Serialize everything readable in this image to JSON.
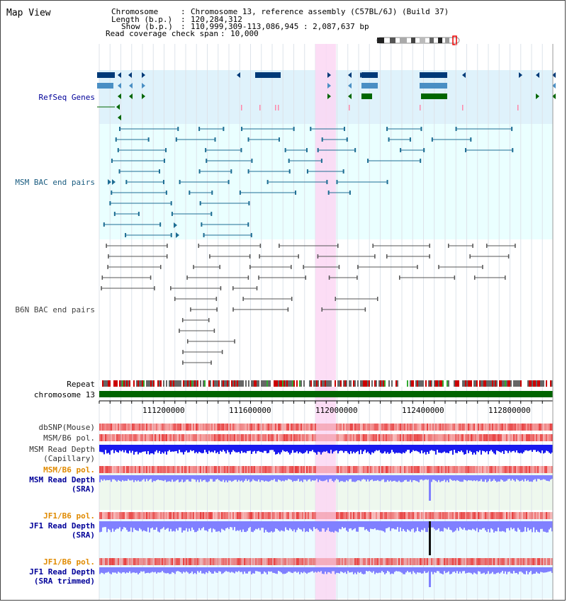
{
  "page": {
    "title": "Map View"
  },
  "header": {
    "chromosome_label": "Chromosome",
    "chromosome_value": "Chromosome 13, reference assembly (C57BL/6J) (Build 37)",
    "length_label": "Length (b.p.)",
    "length_value": "120,284,312",
    "show_label": "Show (b.p.)",
    "show_value": "110,999,309-113,086,945 : 2,087,637 bp",
    "coverage_label": "Read coverage check span",
    "coverage_value": "10,000"
  },
  "tracks": {
    "refseq": "RefSeq Genes",
    "msm_bac": "MSM BAC end pairs",
    "b6n_bac": "B6N BAC end pairs",
    "repeat": "Repeat",
    "chromosome": "chromosome 13",
    "dbsnp": "dbSNP(Mouse)",
    "msm_b6_pol_1": "MSM/B6 pol.",
    "msm_depth_cap_1": "MSM Read Depth",
    "msm_depth_cap_2": "(Capillary)",
    "msm_b6_pol_2": "MSM/B6 pol.",
    "msm_depth_sra_1": "MSM Read Depth",
    "msm_depth_sra_2": "(SRA)",
    "jf1_b6_pol_1": "JF1/B6 pol.",
    "jf1_depth_sra_1": "JF1 Read Depth",
    "jf1_depth_sra_2": "(SRA)",
    "jf1_b6_pol_2": "JF1/B6 pol.",
    "jf1_depth_trim_1": "JF1 Read Depth",
    "jf1_depth_trim_2": "(SRA trimmed)"
  },
  "ruler": {
    "ticks": [
      "111200000",
      "111600000",
      "112000000",
      "112400000",
      "112800000"
    ]
  },
  "colors": {
    "refseq_bg": "#dff2fb",
    "msm_bg": "#eaffff",
    "gene_dark": "#003a78",
    "gene_mid": "#4a8fc4",
    "gene_green": "#006600",
    "bac_msm": "#1f6e94",
    "bac_b6n": "#555555",
    "highlight": "#fbd7f3",
    "chrom_bar": "#006400",
    "depth_blue": "#1a1aee",
    "depth_light": "#8080ff",
    "pol_red": "#e84040",
    "label_blue": "#000099",
    "label_orange": "#e08a00",
    "label_teal": "#1a5c80"
  }
}
